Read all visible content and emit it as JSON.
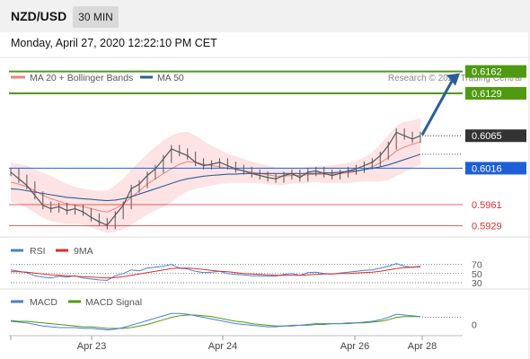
{
  "header": {
    "pair": "NZD/USD",
    "timeframe": "30 MIN",
    "datetime": "Monday, April 27, 2020 12:22:10 PM CET"
  },
  "colors": {
    "price": "#555555",
    "ma20": "#f08080",
    "bollinger_fill": "#fde0e0",
    "ma50": "#2e5d9b",
    "resistance": "#4f9a10",
    "pivot": "#1e5fd8",
    "support": "#d63030",
    "current_price": "#333333",
    "arrow": "#2e5d9b",
    "rsi": "#4a7fd4",
    "rsi_ma": "#d63030",
    "macd": "#4a7fd4",
    "macd_signal": "#4f9a10"
  },
  "chart_data": [
    {
      "type": "line",
      "panel": "price",
      "legend": [
        {
          "name": "MA 20 + Bollinger Bands",
          "color": "#f08080"
        },
        {
          "name": "MA 50",
          "color": "#2e5d9b"
        }
      ],
      "watermark": "Research © 2020 Trading Central",
      "x_ticks": [
        "Apr 23",
        "Apr 24",
        "Apr 26",
        "Apr 28"
      ],
      "levels": [
        {
          "label": "0.6162",
          "value": 0.6162,
          "kind": "resistance"
        },
        {
          "label": "0.6129",
          "value": 0.6129,
          "kind": "resistance"
        },
        {
          "label": "0.6065",
          "value": 0.6065,
          "kind": "current"
        },
        {
          "label": "0.6016",
          "value": 0.6016,
          "kind": "pivot"
        },
        {
          "label": "0.5961",
          "value": 0.5961,
          "kind": "support"
        },
        {
          "label": "0.5929",
          "value": 0.5929,
          "kind": "support"
        }
      ],
      "series": [
        {
          "name": "price",
          "values": [
            0.601,
            0.6,
            0.599,
            0.5975,
            0.596,
            0.5955,
            0.5958,
            0.5952,
            0.5955,
            0.595,
            0.5942,
            0.5935,
            0.593,
            0.5945,
            0.596,
            0.5985,
            0.5992,
            0.6005,
            0.6015,
            0.603,
            0.6045,
            0.604,
            0.6035,
            0.6025,
            0.602,
            0.6022,
            0.6025,
            0.602,
            0.6015,
            0.6012,
            0.6008,
            0.6005,
            0.6002,
            0.6,
            0.6005,
            0.6008,
            0.6002,
            0.601,
            0.6012,
            0.6008,
            0.6005,
            0.6008,
            0.6012,
            0.6015,
            0.602,
            0.6025,
            0.6035,
            0.605,
            0.607,
            0.6065,
            0.606,
            0.6065
          ]
        },
        {
          "name": "MA 20",
          "values": [
            0.5995,
            0.5992,
            0.5988,
            0.5982,
            0.5975,
            0.597,
            0.5966,
            0.5962,
            0.596,
            0.5958,
            0.5955,
            0.5952,
            0.595,
            0.5955,
            0.5962,
            0.5972,
            0.5982,
            0.5992,
            0.6,
            0.6008,
            0.6015,
            0.6022,
            0.6026,
            0.6025,
            0.6022,
            0.602,
            0.6018,
            0.6016,
            0.6014,
            0.6012,
            0.601,
            0.6008,
            0.6006,
            0.6004,
            0.6004,
            0.6005,
            0.6005,
            0.6006,
            0.6007,
            0.6007,
            0.6007,
            0.6008,
            0.6009,
            0.6011,
            0.6014,
            0.6018,
            0.6024,
            0.6032,
            0.6042,
            0.6048,
            0.6052,
            0.6056
          ]
        },
        {
          "name": "MA 50",
          "values": [
            0.5985,
            0.5984,
            0.5982,
            0.598,
            0.5978,
            0.5976,
            0.5974,
            0.5972,
            0.5971,
            0.597,
            0.5969,
            0.5968,
            0.5967,
            0.5968,
            0.597,
            0.5973,
            0.5977,
            0.5981,
            0.5985,
            0.5989,
            0.5993,
            0.5997,
            0.6,
            0.6002,
            0.6004,
            0.6005,
            0.6006,
            0.6007,
            0.6007,
            0.6008,
            0.6008,
            0.6008,
            0.6008,
            0.6008,
            0.6008,
            0.6008,
            0.6008,
            0.6008,
            0.6008,
            0.6009,
            0.6009,
            0.601,
            0.6011,
            0.6012,
            0.6014,
            0.6016,
            0.6018,
            0.6021,
            0.6025,
            0.6029,
            0.6033,
            0.6037
          ]
        }
      ],
      "bollinger_width": [
        0.003,
        0.003,
        0.0032,
        0.0033,
        0.0034,
        0.0034,
        0.0032,
        0.003,
        0.0028,
        0.0027,
        0.0028,
        0.003,
        0.0032,
        0.0035,
        0.0038,
        0.0042,
        0.0044,
        0.0046,
        0.0048,
        0.005,
        0.005,
        0.0048,
        0.0045,
        0.004,
        0.0035,
        0.003,
        0.0026,
        0.0022,
        0.002,
        0.0018,
        0.0016,
        0.0015,
        0.0014,
        0.0013,
        0.0013,
        0.0012,
        0.0012,
        0.0012,
        0.0012,
        0.0013,
        0.0013,
        0.0014,
        0.0015,
        0.0016,
        0.0018,
        0.0022,
        0.0028,
        0.0034,
        0.0038,
        0.0038,
        0.0036,
        0.0035
      ],
      "ylim": [
        0.5915,
        0.6175
      ]
    },
    {
      "type": "line",
      "panel": "rsi",
      "legend": [
        {
          "name": "RSI",
          "color": "#4a7fd4"
        },
        {
          "name": "9MA",
          "color": "#d63030"
        }
      ],
      "y_ticks": [
        "70",
        "50",
        "30"
      ],
      "series": [
        {
          "name": "RSI",
          "values": [
            58,
            55,
            52,
            45,
            42,
            40,
            44,
            42,
            45,
            40,
            38,
            36,
            35,
            45,
            50,
            58,
            56,
            62,
            64,
            66,
            70,
            62,
            60,
            55,
            52,
            53,
            55,
            50,
            48,
            47,
            45,
            45,
            44,
            44,
            48,
            50,
            46,
            52,
            53,
            50,
            49,
            51,
            53,
            55,
            57,
            58,
            62,
            66,
            72,
            66,
            64,
            66
          ]
        },
        {
          "name": "9MA",
          "values": [
            54,
            54,
            53,
            51,
            49,
            47,
            46,
            45,
            44,
            43,
            42,
            41,
            40,
            41,
            43,
            46,
            49,
            52,
            55,
            58,
            61,
            62,
            62,
            61,
            59,
            57,
            55,
            54,
            52,
            50,
            49,
            48,
            47,
            46,
            46,
            46,
            46,
            47,
            48,
            49,
            49,
            50,
            50,
            51,
            52,
            53,
            55,
            58,
            61,
            63,
            64,
            65
          ]
        }
      ],
      "ylim": [
        20,
        85
      ]
    },
    {
      "type": "line",
      "panel": "macd",
      "legend": [
        {
          "name": "MACD",
          "color": "#4a7fd4"
        },
        {
          "name": "MACD Signal",
          "color": "#4f9a10"
        }
      ],
      "y_ticks": [
        "0"
      ],
      "series": [
        {
          "name": "MACD",
          "values": [
            0.0004,
            0.0003,
            0.0002,
            0.0,
            -0.0002,
            -0.0003,
            -0.0004,
            -0.0004,
            -0.0004,
            -0.0005,
            -0.0005,
            -0.0006,
            -0.0007,
            -0.0006,
            -0.0004,
            -0.0001,
            0.0002,
            0.0005,
            0.0008,
            0.0011,
            0.0014,
            0.0014,
            0.0013,
            0.0011,
            0.0009,
            0.0007,
            0.0005,
            0.0003,
            0.0001,
            0.0,
            -0.0001,
            -0.0002,
            -0.0003,
            -0.0003,
            -0.0002,
            -0.0001,
            -0.0001,
            0.0,
            0.0001,
            0.0001,
            0.0001,
            0.0001,
            0.0002,
            0.0002,
            0.0003,
            0.0004,
            0.0006,
            0.0009,
            0.0013,
            0.0012,
            0.0011,
            0.001
          ]
        },
        {
          "name": "MACD Signal",
          "values": [
            0.0005,
            0.0004,
            0.0004,
            0.0003,
            0.0002,
            0.0001,
            0.0,
            -0.0001,
            -0.0002,
            -0.0003,
            -0.0003,
            -0.0004,
            -0.0005,
            -0.0005,
            -0.0005,
            -0.0004,
            -0.0002,
            0.0,
            0.0003,
            0.0006,
            0.0009,
            0.0011,
            0.0012,
            0.0012,
            0.0011,
            0.001,
            0.0008,
            0.0006,
            0.0004,
            0.0003,
            0.0001,
            0.0,
            -0.0001,
            -0.0002,
            -0.0002,
            -0.0002,
            -0.0001,
            -0.0001,
            0.0,
            0.0,
            0.0001,
            0.0001,
            0.0001,
            0.0002,
            0.0002,
            0.0003,
            0.0004,
            0.0006,
            0.0009,
            0.001,
            0.001,
            0.001
          ]
        }
      ],
      "ylim": [
        -0.0012,
        0.002
      ]
    }
  ]
}
